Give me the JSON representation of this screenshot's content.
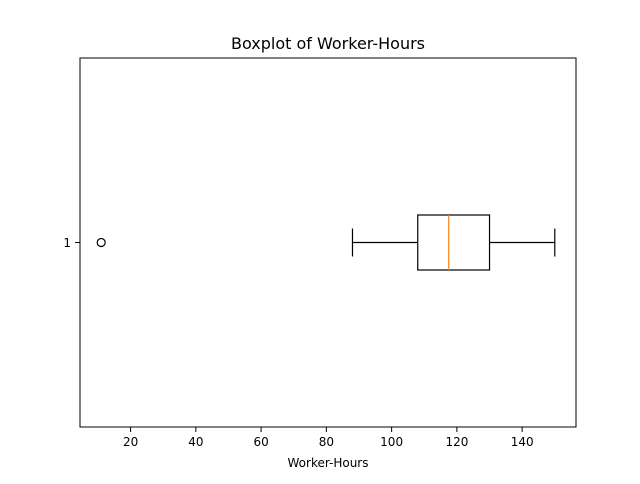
{
  "chart_data": {
    "type": "boxplot",
    "title": "Boxplot of Worker-Hours",
    "xlabel": "Worker-Hours",
    "ylabel": "",
    "orientation": "horizontal",
    "xlim": [
      4.5,
      156.5
    ],
    "x_ticks": [
      20,
      40,
      60,
      80,
      100,
      120,
      140
    ],
    "y_tick_labels": [
      "1"
    ],
    "grid": false,
    "colors": {
      "box": "#000000",
      "median": "#ff7f0e",
      "outlier": "#000000",
      "background": "#ffffff"
    },
    "series": [
      {
        "category": "1",
        "whisker_low": 88,
        "q1": 108,
        "median": 117.5,
        "q3": 130,
        "whisker_high": 150,
        "outliers": [
          11
        ]
      }
    ]
  }
}
